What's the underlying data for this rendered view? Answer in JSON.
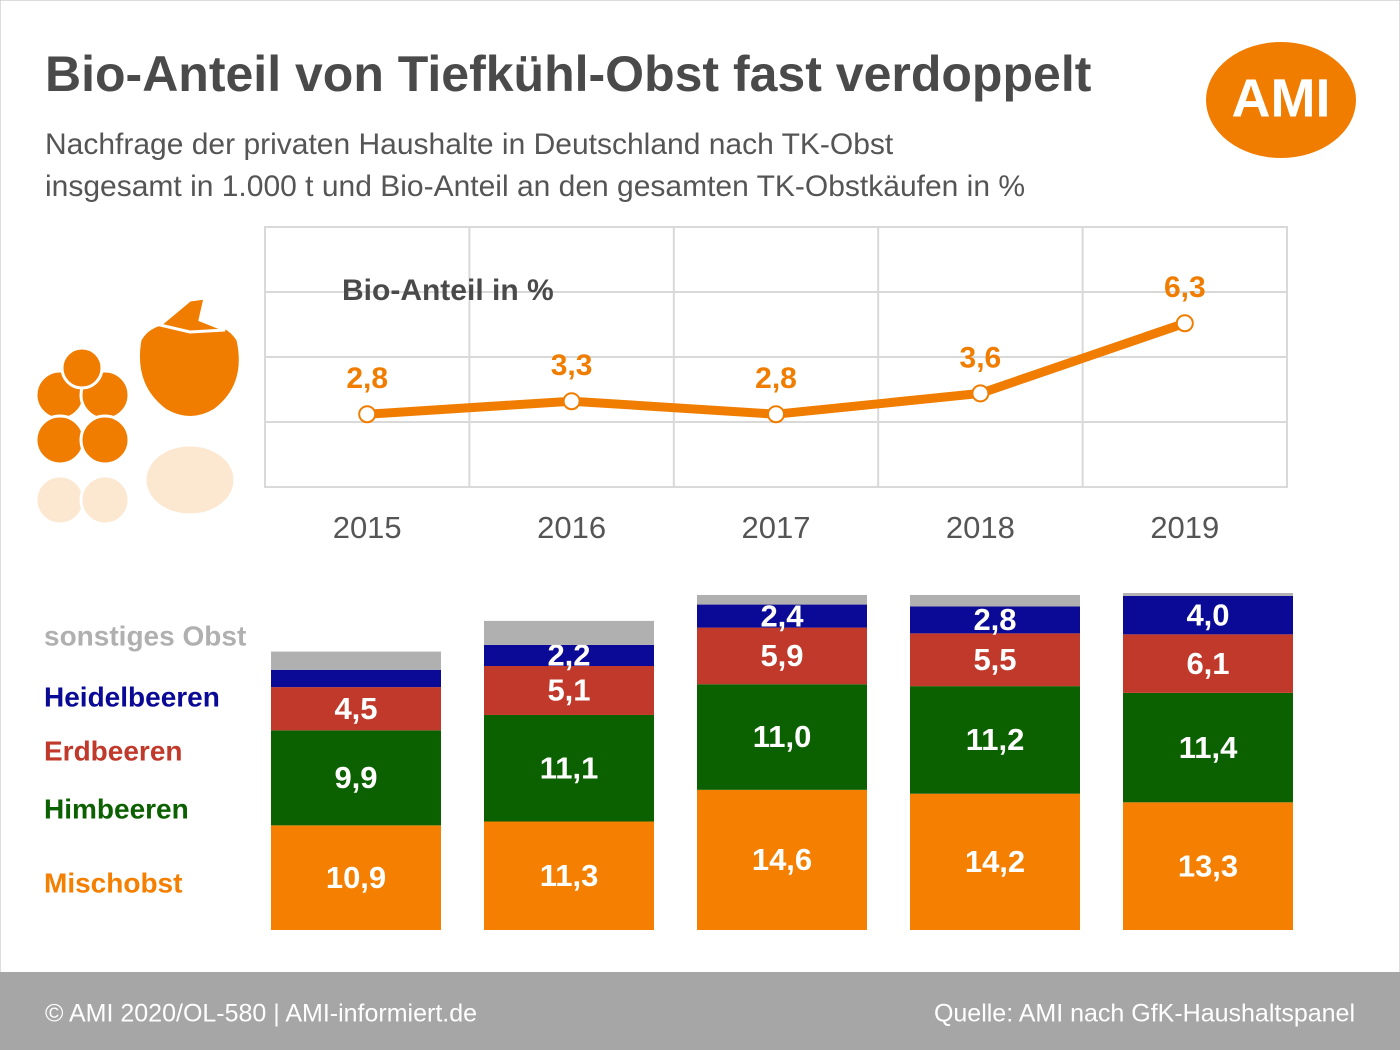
{
  "title": "Bio-Anteil von Tiefkühl-Obst fast verdoppelt",
  "subtitle": [
    "Nachfrage der privaten Haushalte in Deutschland nach TK-Obst",
    "insgesamt in 1.000 t und Bio-Anteil an den gesamten TK-Obstkäufen in %"
  ],
  "logo": "AMI",
  "footer": {
    "left": "© AMI 2020/OL-580 | AMI-informiert.de",
    "right": "Quelle: AMI nach GfK-Haushaltspanel"
  },
  "chart_data": [
    {
      "type": "line",
      "annotation": "Bio-Anteil in %",
      "categories": [
        "2015",
        "2016",
        "2017",
        "2018",
        "2019"
      ],
      "values": [
        2.8,
        3.3,
        2.8,
        3.6,
        6.3
      ],
      "value_labels": [
        "2,8",
        "3,3",
        "2,8",
        "3,6",
        "6,3"
      ],
      "color": "#f07d00",
      "ylim": [
        0,
        10
      ],
      "yticks": [
        0,
        2.5,
        5,
        7.5,
        10
      ],
      "grid": true
    },
    {
      "type": "stacked-bar",
      "ylim": [
        0,
        35
      ],
      "series": [
        {
          "name": "Mischobst",
          "color": "#f57f00",
          "values": [
            10.9,
            11.3,
            14.6,
            14.2,
            13.3
          ],
          "value_labels": [
            "10,9",
            "11,3",
            "14,6",
            "14,2",
            "13,3"
          ]
        },
        {
          "name": "Himbeeren",
          "color": "#0b6100",
          "values": [
            9.9,
            11.1,
            11.0,
            11.2,
            11.4
          ],
          "value_labels": [
            "9,9",
            "11,1",
            "11,0",
            "11,2",
            "11,4"
          ]
        },
        {
          "name": "Erdbeeren",
          "color": "#c0392b",
          "values": [
            4.5,
            5.1,
            5.9,
            5.5,
            6.1
          ],
          "value_labels": [
            "4,5",
            "5,1",
            "5,9",
            "5,5",
            "6,1"
          ]
        },
        {
          "name": "Heidelbeeren",
          "color": "#0a0a96",
          "values": [
            1.8,
            2.2,
            2.4,
            2.8,
            4.0
          ],
          "value_labels": [
            null,
            "2,2",
            "2,4",
            "2,8",
            "4,0"
          ]
        },
        {
          "name": "sonstiges Obst",
          "color": "#b0b0b0",
          "values": [
            1.9,
            2.5,
            1.0,
            1.2,
            0.3
          ]
        }
      ]
    }
  ]
}
